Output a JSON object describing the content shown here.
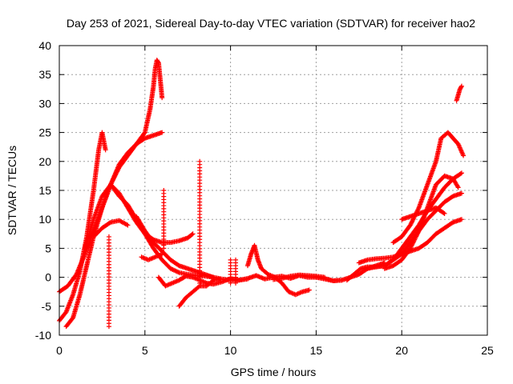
{
  "chart_data": {
    "type": "scatter",
    "title": "Day 253 of 2021, Sidereal Day-to-day VTEC variation (SDTVAR) for receiver hao2",
    "xlabel": "GPS time / hours",
    "ylabel": "SDTVAR / TECUs",
    "xlim": [
      0,
      25
    ],
    "ylim": [
      -10,
      40
    ],
    "xticks": [
      0,
      5,
      10,
      15,
      20,
      25
    ],
    "yticks": [
      -10,
      -5,
      0,
      5,
      10,
      15,
      20,
      25,
      30,
      35,
      40
    ],
    "xtick_labels": [
      "0",
      "5",
      "10",
      "15",
      "20",
      "25"
    ],
    "ytick_labels": [
      "-10",
      "-5",
      "0",
      "5",
      "10",
      "15",
      "20",
      "25",
      "30",
      "35",
      "40"
    ],
    "grid": true,
    "marker": "+",
    "color": "#ff0000",
    "series": [
      {
        "name": "arc1",
        "x": [
          0.0,
          0.4,
          0.8,
          1.2,
          1.6,
          2.0,
          2.3,
          2.5,
          2.7
        ],
        "y": [
          -7.5,
          -6.0,
          -3.0,
          1.0,
          7.0,
          15.0,
          22.0,
          25.0,
          22.0
        ]
      },
      {
        "name": "arc2",
        "x": [
          0.4,
          0.8,
          1.2,
          1.6,
          2.0,
          2.5,
          3.0,
          3.5,
          4.0,
          4.5,
          5.0,
          5.3,
          5.5,
          5.6,
          5.7,
          5.8,
          5.9,
          6.0
        ],
        "y": [
          -8.5,
          -7.0,
          -3.0,
          2.0,
          7.0,
          12.0,
          16.0,
          19.0,
          21.0,
          23.0,
          25.0,
          29.0,
          33.0,
          36.0,
          37.5,
          37.0,
          34.0,
          31.0
        ]
      },
      {
        "name": "arc3",
        "x": [
          0.0,
          0.5,
          1.0,
          1.5,
          2.0,
          2.5,
          3.0,
          3.5,
          4.0,
          4.5,
          5.0,
          5.5,
          6.0
        ],
        "y": [
          -2.5,
          -1.5,
          0.5,
          4.0,
          8.0,
          12.0,
          16.0,
          19.5,
          21.5,
          23.0,
          24.0,
          24.5,
          25.0
        ]
      },
      {
        "name": "arc4",
        "x": [
          1.5,
          2.0,
          2.5,
          3.0,
          3.5,
          4.0,
          4.5,
          5.0,
          5.5,
          6.0,
          6.5,
          7.0,
          7.5,
          7.8
        ],
        "y": [
          5.0,
          10.0,
          14.0,
          16.0,
          14.5,
          12.0,
          9.5,
          7.5,
          6.5,
          6.0,
          6.0,
          6.3,
          6.8,
          7.5
        ]
      },
      {
        "name": "arc5",
        "x": [
          2.0,
          2.5,
          3.0,
          3.5,
          4.0
        ],
        "y": [
          7.0,
          8.5,
          9.5,
          9.8,
          9.0
        ]
      },
      {
        "name": "arc6",
        "x": [
          3.0,
          3.5,
          4.0,
          4.5,
          5.0,
          5.5,
          6.0,
          6.5,
          7.0,
          7.5,
          8.0,
          8.5,
          9.0,
          9.5,
          10.0,
          10.5,
          11.0
        ],
        "y": [
          16.0,
          14.0,
          12.5,
          10.0,
          7.5,
          5.0,
          3.0,
          1.5,
          0.8,
          0.5,
          0.3,
          0.2,
          0.0,
          -0.3,
          -0.5,
          -0.5,
          -0.3
        ]
      },
      {
        "name": "arc7",
        "x": [
          4.5,
          5.0,
          5.5,
          6.0,
          6.5,
          7.0,
          7.5,
          8.0,
          8.5,
          9.0
        ],
        "y": [
          10.5,
          8.0,
          6.0,
          4.5,
          3.0,
          2.0,
          1.5,
          1.0,
          0.5,
          0.0
        ]
      },
      {
        "name": "arc8",
        "x": [
          4.8,
          5.2,
          5.6,
          6.0
        ],
        "y": [
          3.5,
          3.0,
          3.5,
          4.0
        ]
      },
      {
        "name": "arc9",
        "x": [
          5.8,
          6.2,
          6.6,
          7.0,
          7.4,
          7.8,
          8.2,
          8.6,
          9.0,
          9.5,
          10.0,
          10.5,
          11.0,
          11.5,
          12.0,
          12.5,
          13.0,
          13.5,
          14.0,
          14.5,
          15.0,
          15.5,
          16.0,
          16.5
        ],
        "y": [
          0.0,
          -1.5,
          -1.0,
          -0.5,
          0.2,
          0.0,
          -0.5,
          -1.0,
          -1.2,
          -0.8,
          -0.2,
          -0.5,
          -0.2,
          0.3,
          -0.3,
          0.0,
          0.2,
          -0.2,
          0.3,
          0.0,
          0.0,
          -0.3,
          -0.6,
          -0.5
        ]
      },
      {
        "name": "arc10",
        "x": [
          7.0,
          7.4,
          7.8,
          8.2,
          8.6,
          9.0,
          9.4
        ],
        "y": [
          -5.0,
          -3.5,
          -2.5,
          -1.5,
          -1.5,
          -0.5,
          -0.3
        ]
      },
      {
        "name": "arc11",
        "x": [
          11.0,
          11.2,
          11.4,
          11.6,
          11.8,
          12.2,
          12.6,
          13.0,
          13.4,
          13.8,
          14.2,
          14.6
        ],
        "y": [
          2.0,
          4.0,
          5.5,
          3.0,
          1.5,
          0.5,
          0.0,
          -1.0,
          -2.5,
          -3.0,
          -2.5,
          -2.2
        ]
      },
      {
        "name": "arc12",
        "x": [
          12.5,
          13.0,
          13.5,
          14.0,
          14.5,
          15.0,
          15.5
        ],
        "y": [
          -0.4,
          -0.2,
          0.2,
          0.4,
          0.3,
          0.2,
          0.0
        ]
      },
      {
        "name": "arc13",
        "x": [
          15.0,
          15.5,
          16.0,
          16.5,
          17.0,
          17.5,
          18.0,
          18.5,
          19.0
        ],
        "y": [
          0.0,
          -0.2,
          -0.6,
          -0.5,
          0.0,
          0.5,
          1.5,
          2.0,
          2.5
        ]
      },
      {
        "name": "arc14",
        "x": [
          16.8,
          17.2,
          17.6,
          18.0,
          18.5,
          19.0,
          19.5,
          20.0,
          20.5,
          21.0,
          21.5,
          22.0,
          22.5,
          23.0,
          23.5
        ],
        "y": [
          -0.5,
          0.5,
          1.5,
          1.8,
          1.8,
          2.0,
          3.0,
          4.0,
          6.0,
          8.0,
          10.0,
          11.5,
          13.0,
          14.0,
          14.5
        ]
      },
      {
        "name": "arc15",
        "x": [
          17.5,
          18.0,
          18.5,
          19.0,
          19.5,
          20.0,
          20.5,
          21.0,
          21.5,
          22.0,
          22.5,
          23.0,
          23.5
        ],
        "y": [
          2.5,
          3.0,
          3.2,
          3.3,
          3.5,
          4.0,
          4.5,
          5.0,
          6.0,
          7.5,
          8.5,
          9.5,
          10.0
        ]
      },
      {
        "name": "arc16",
        "x": [
          18.0,
          18.5,
          19.0,
          19.5,
          20.0,
          20.5,
          21.0,
          21.5,
          22.0,
          22.5,
          23.0,
          23.5
        ],
        "y": [
          1.5,
          1.8,
          2.0,
          3.0,
          5.0,
          7.0,
          9.0,
          11.5,
          13.5,
          15.5,
          17.0,
          18.0
        ]
      },
      {
        "name": "arc17",
        "x": [
          19.0,
          19.5,
          20.0,
          20.5,
          21.0,
          21.5,
          22.0,
          22.5,
          23.0,
          23.3
        ],
        "y": [
          1.5,
          2.0,
          3.0,
          5.0,
          8.0,
          12.0,
          16.0,
          17.5,
          17.0,
          15.5
        ]
      },
      {
        "name": "arc18",
        "x": [
          19.5,
          20.0,
          20.5,
          21.0,
          21.5,
          22.0,
          22.3,
          22.7,
          23.0,
          23.3,
          23.6
        ],
        "y": [
          6.0,
          7.0,
          9.0,
          12.0,
          16.0,
          20.0,
          24.0,
          25.0,
          24.0,
          23.0,
          21.0
        ]
      },
      {
        "name": "arc19",
        "x": [
          20.0,
          20.5,
          21.0,
          21.5,
          22.0,
          22.5
        ],
        "y": [
          10.0,
          10.5,
          11.0,
          11.5,
          12.0,
          11.0
        ]
      },
      {
        "name": "arc20",
        "x": [
          23.2,
          23.3,
          23.4,
          23.5
        ],
        "y": [
          30.5,
          31.5,
          32.5,
          33.0
        ]
      }
    ],
    "spikes": [
      {
        "x": 2.9,
        "y_from": -8.5,
        "y_to": 7.0
      },
      {
        "x": 6.1,
        "y_from": 5.0,
        "y_to": 15.0
      },
      {
        "x": 8.2,
        "y_from": -1.0,
        "y_to": 20.0
      },
      {
        "x": 10.0,
        "y_from": -1.0,
        "y_to": 3.0
      },
      {
        "x": 10.3,
        "y_from": -1.0,
        "y_to": 3.0
      }
    ]
  }
}
